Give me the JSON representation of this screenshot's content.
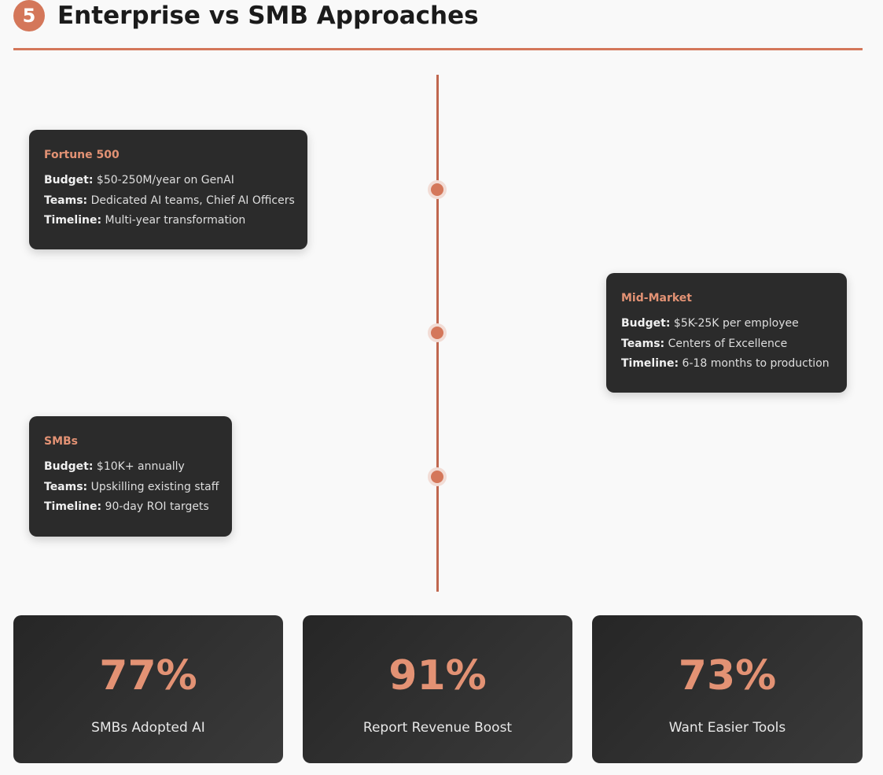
{
  "header": {
    "number": "5",
    "title": "Enterprise vs SMB Approaches"
  },
  "colors": {
    "accent": "#d4775a",
    "card_bg": "#2b2b2b",
    "card_title": "#e39274",
    "page_bg": "#f9f9f9"
  },
  "timeline": {
    "items": [
      {
        "title": "Fortune 500",
        "budget_label": "Budget:",
        "budget": " $50-250M/year on GenAI",
        "teams_label": "Teams:",
        "teams": " Dedicated AI teams, Chief AI Officers",
        "timeline_label": "Timeline:",
        "timeline": " Multi-year transformation"
      },
      {
        "title": "Mid-Market",
        "budget_label": "Budget:",
        "budget": " $5K-25K per employee",
        "teams_label": "Teams:",
        "teams": " Centers of Excellence",
        "timeline_label": "Timeline:",
        "timeline": " 6-18 months to production"
      },
      {
        "title": "SMBs",
        "budget_label": "Budget:",
        "budget": " $10K+ annually",
        "teams_label": "Teams:",
        "teams": " Upskilling existing staff",
        "timeline_label": "Timeline:",
        "timeline": " 90-day ROI targets"
      }
    ]
  },
  "stats": [
    {
      "value": "77%",
      "label": "SMBs Adopted AI"
    },
    {
      "value": "91%",
      "label": "Report Revenue Boost"
    },
    {
      "value": "73%",
      "label": "Want Easier Tools"
    }
  ]
}
